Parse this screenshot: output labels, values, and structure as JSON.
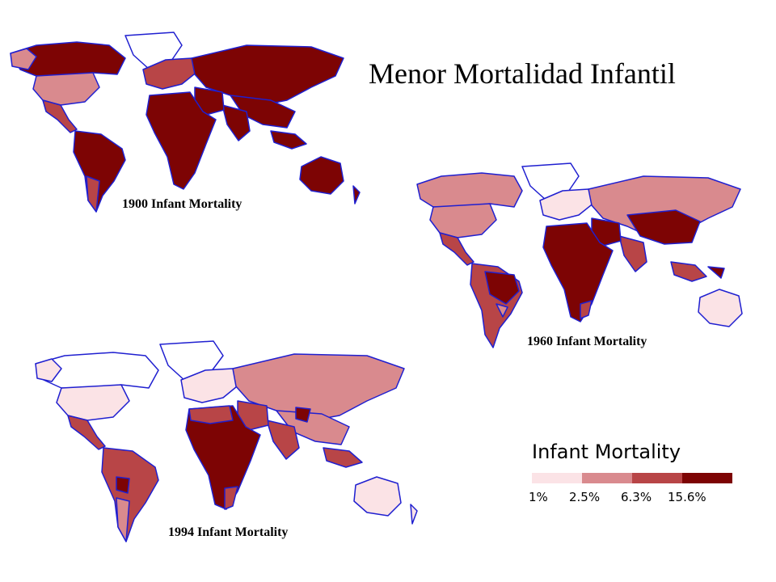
{
  "title": "Menor Mortalidad  Infantil",
  "maps": [
    {
      "label": "1900 Infant Mortality"
    },
    {
      "label": "1960 Infant Mortality"
    },
    {
      "label": "1994 Infant Mortality"
    }
  ],
  "legend": {
    "title": "Infant Mortality",
    "ticks": [
      "1%",
      "2.5%",
      "6.3%",
      "15.6%"
    ],
    "colors": [
      "#fbe3e6",
      "#d98a8e",
      "#b84547",
      "#7d0404"
    ]
  },
  "colors": {
    "border": "#1f1fd0",
    "country_edge": "#555555",
    "background": "#ffffff"
  }
}
